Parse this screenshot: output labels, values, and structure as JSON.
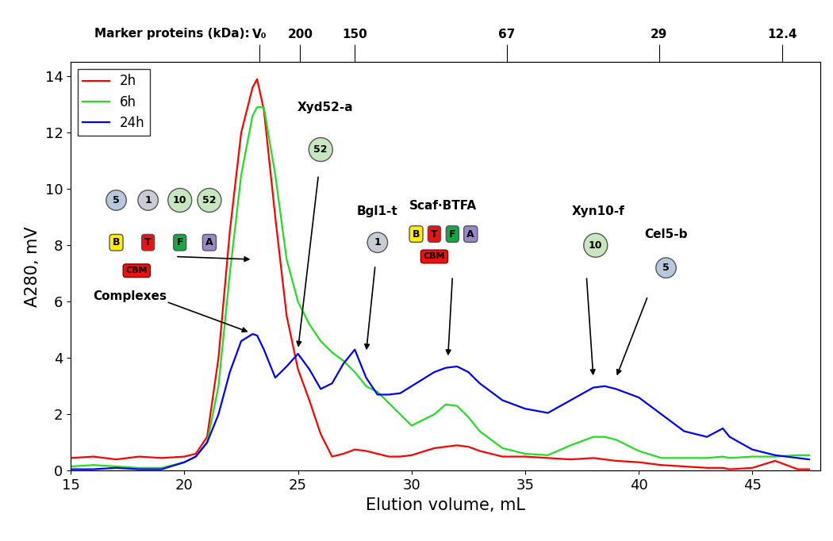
{
  "chart_data": {
    "type": "line",
    "x_label": "Elution volume, mL",
    "y_label": "A280, mV",
    "xlim": [
      15,
      48
    ],
    "xticks": [
      15,
      20,
      25,
      30,
      35,
      40,
      45
    ],
    "ylim": [
      0,
      14.5
    ],
    "yticks": [
      0,
      2,
      4,
      6,
      8,
      10,
      12,
      14
    ],
    "x2label": "Marker proteins (kDa):",
    "x2ticks": [
      {
        "value": 23.3,
        "label": "V₀"
      },
      {
        "value": 25.1,
        "label": "200"
      },
      {
        "value": 27.5,
        "label": "150"
      },
      {
        "value": 34.2,
        "label": "67"
      },
      {
        "value": 40.9,
        "label": "29"
      },
      {
        "value": 46.3,
        "label": "12.4"
      }
    ],
    "legend": "upper left",
    "x": [
      15,
      16,
      17,
      18,
      19,
      20,
      20.5,
      21,
      21.5,
      22,
      22.5,
      23,
      23.2,
      23.5,
      24,
      24.5,
      25,
      25.5,
      26,
      26.5,
      27,
      27.5,
      28,
      28.5,
      29,
      29.5,
      30,
      31,
      31.5,
      32,
      32.5,
      33,
      34,
      35,
      36,
      37,
      38,
      38.5,
      39,
      40,
      41,
      42,
      43,
      43.7,
      44,
      45,
      46,
      47,
      47.5
    ],
    "series": [
      {
        "name": "2h",
        "color": "#ff0000",
        "values": [
          0.45,
          0.5,
          0.4,
          0.5,
          0.45,
          0.5,
          0.6,
          1.2,
          4.0,
          8.5,
          12.0,
          13.6,
          13.9,
          12.8,
          9.0,
          5.5,
          3.6,
          2.5,
          1.3,
          0.5,
          0.6,
          0.75,
          0.7,
          0.6,
          0.5,
          0.5,
          0.55,
          0.8,
          0.85,
          0.9,
          0.85,
          0.7,
          0.5,
          0.5,
          0.45,
          0.4,
          0.45,
          0.4,
          0.35,
          0.3,
          0.2,
          0.15,
          0.1,
          0.1,
          0.05,
          0.1,
          0.35,
          0.05,
          0.05
        ]
      },
      {
        "name": "6h",
        "color": "#22dd22",
        "values": [
          0.15,
          0.2,
          0.15,
          0.1,
          0.1,
          0.3,
          0.5,
          1.0,
          3.0,
          7.0,
          10.5,
          12.6,
          12.9,
          12.9,
          10.5,
          7.5,
          6.0,
          5.2,
          4.6,
          4.2,
          3.9,
          3.5,
          3.0,
          2.8,
          2.4,
          2.0,
          1.6,
          2.0,
          2.35,
          2.3,
          1.9,
          1.4,
          0.8,
          0.6,
          0.55,
          0.9,
          1.2,
          1.2,
          1.1,
          0.7,
          0.45,
          0.45,
          0.45,
          0.5,
          0.45,
          0.5,
          0.5,
          0.55,
          0.55
        ]
      },
      {
        "name": "24h",
        "color": "#0000ff",
        "values": [
          0.05,
          0.05,
          0.1,
          0.05,
          0.05,
          0.3,
          0.5,
          1.0,
          2.0,
          3.5,
          4.6,
          4.85,
          4.8,
          4.3,
          3.3,
          3.7,
          4.15,
          3.6,
          2.9,
          3.1,
          3.8,
          4.3,
          3.3,
          2.7,
          2.7,
          2.75,
          3.0,
          3.5,
          3.65,
          3.7,
          3.5,
          3.1,
          2.5,
          2.2,
          2.05,
          2.5,
          2.95,
          3.0,
          2.9,
          2.6,
          2.0,
          1.4,
          1.2,
          1.5,
          1.2,
          0.75,
          0.55,
          0.45,
          0.4
        ]
      }
    ],
    "annotations": [
      {
        "text": "Complexes",
        "icon": {
          "enzymes": [
            "5",
            "1",
            "10",
            "52"
          ],
          "modules": [
            "B",
            "T",
            "F",
            "A"
          ],
          "cbm": "CBM"
        }
      },
      {
        "text": "Xyd52-a",
        "icon": {
          "enzymes": [
            "52"
          ],
          "modules": [],
          "cbm": null
        }
      },
      {
        "text": "Bgl1-t",
        "icon": {
          "enzymes": [
            "1"
          ],
          "modules": [],
          "cbm": null
        }
      },
      {
        "text": "Scaf·BTFA",
        "icon": {
          "enzymes": [],
          "modules": [
            "B",
            "T",
            "F",
            "A"
          ],
          "cbm": "CBM"
        }
      },
      {
        "text": "Xyn10-f",
        "icon": {
          "enzymes": [
            "10"
          ],
          "modules": [],
          "cbm": null
        }
      },
      {
        "text": "Cel5-b",
        "icon": {
          "enzymes": [
            "5"
          ],
          "modules": [],
          "cbm": null
        }
      }
    ]
  }
}
